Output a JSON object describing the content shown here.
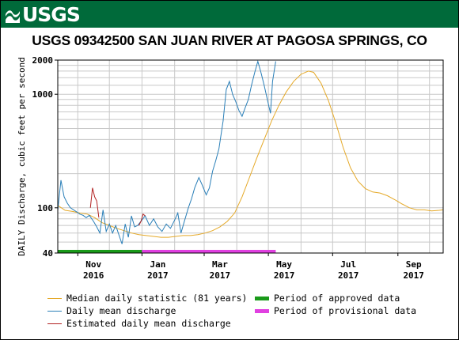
{
  "brand": {
    "logo_text": "USGS",
    "banner_color": "#006a3a"
  },
  "chart_data": {
    "type": "line",
    "title": "USGS 09342500 SAN JUAN RIVER AT PAGOSA SPRINGS, CO",
    "ylabel": "DAILY Discharge, cubic feet per second",
    "xlabel": "",
    "y_scale": "log",
    "ylim": [
      40,
      2000
    ],
    "y_ticks": [
      {
        "value": 40,
        "label": "40"
      },
      {
        "value": 100,
        "label": "100"
      },
      {
        "value": 1000,
        "label": "1000"
      },
      {
        "value": 2000,
        "label": "2000"
      }
    ],
    "xlim": [
      "2016-10-13",
      "2017-10-14"
    ],
    "x_ticks": [
      {
        "date": "2016-11-01",
        "month": "Nov",
        "year": "2016"
      },
      {
        "date": "2017-01-01",
        "month": "Jan",
        "year": "2017"
      },
      {
        "date": "2017-03-01",
        "month": "Mar",
        "year": "2017"
      },
      {
        "date": "2017-05-01",
        "month": "May",
        "year": "2017"
      },
      {
        "date": "2017-07-01",
        "month": "Jul",
        "year": "2017"
      },
      {
        "date": "2017-09-01",
        "month": "Sep",
        "year": "2017"
      }
    ],
    "grid": true,
    "series": [
      {
        "name": "Median daily statistic (81 years)",
        "color": "#e5a928",
        "points": [
          [
            "2016-10-13",
            105
          ],
          [
            "2016-10-20",
            95
          ],
          [
            "2016-10-27",
            93
          ],
          [
            "2016-11-03",
            90
          ],
          [
            "2016-11-10",
            88
          ],
          [
            "2016-11-17",
            82
          ],
          [
            "2016-11-24",
            74
          ],
          [
            "2016-12-01",
            70
          ],
          [
            "2016-12-08",
            66
          ],
          [
            "2016-12-15",
            63
          ],
          [
            "2016-12-22",
            60
          ],
          [
            "2016-12-29",
            58
          ],
          [
            "2017-01-05",
            57
          ],
          [
            "2017-01-12",
            56
          ],
          [
            "2017-01-19",
            55
          ],
          [
            "2017-01-26",
            55
          ],
          [
            "2017-02-02",
            56
          ],
          [
            "2017-02-09",
            57
          ],
          [
            "2017-02-16",
            57
          ],
          [
            "2017-02-23",
            58
          ],
          [
            "2017-03-02",
            60
          ],
          [
            "2017-03-09",
            63
          ],
          [
            "2017-03-16",
            68
          ],
          [
            "2017-03-23",
            76
          ],
          [
            "2017-03-30",
            90
          ],
          [
            "2017-04-06",
            125
          ],
          [
            "2017-04-13",
            185
          ],
          [
            "2017-04-20",
            275
          ],
          [
            "2017-04-27",
            400
          ],
          [
            "2017-05-04",
            580
          ],
          [
            "2017-05-11",
            800
          ],
          [
            "2017-05-18",
            1050
          ],
          [
            "2017-05-25",
            1300
          ],
          [
            "2017-06-01",
            1500
          ],
          [
            "2017-06-08",
            1600
          ],
          [
            "2017-06-13",
            1560
          ],
          [
            "2017-06-20",
            1250
          ],
          [
            "2017-06-27",
            880
          ],
          [
            "2017-07-04",
            560
          ],
          [
            "2017-07-11",
            340
          ],
          [
            "2017-07-18",
            225
          ],
          [
            "2017-07-25",
            172
          ],
          [
            "2017-08-01",
            148
          ],
          [
            "2017-08-08",
            138
          ],
          [
            "2017-08-15",
            135
          ],
          [
            "2017-08-22",
            128
          ],
          [
            "2017-08-29",
            118
          ],
          [
            "2017-09-05",
            108
          ],
          [
            "2017-09-12",
            100
          ],
          [
            "2017-09-19",
            96
          ],
          [
            "2017-09-26",
            96
          ],
          [
            "2017-10-03",
            94
          ],
          [
            "2017-10-10",
            95
          ],
          [
            "2017-10-14",
            96
          ]
        ]
      },
      {
        "name": "Daily mean discharge",
        "color": "#2a7fb8",
        "points": [
          [
            "2016-10-13",
            95
          ],
          [
            "2016-10-16",
            175
          ],
          [
            "2016-10-19",
            125
          ],
          [
            "2016-10-22",
            110
          ],
          [
            "2016-10-25",
            100
          ],
          [
            "2016-10-28",
            96
          ],
          [
            "2016-10-31",
            92
          ],
          [
            "2016-11-03",
            88
          ],
          [
            "2016-11-06",
            86
          ],
          [
            "2016-11-09",
            82
          ],
          [
            "2016-11-12",
            86
          ],
          [
            "2016-11-16",
            76
          ],
          [
            "2016-11-19",
            68
          ],
          [
            "2016-11-22",
            60
          ],
          [
            "2016-11-25",
            96
          ],
          [
            "2016-11-28",
            62
          ],
          [
            "2016-12-01",
            72
          ],
          [
            "2016-12-04",
            60
          ],
          [
            "2016-12-07",
            70
          ],
          [
            "2016-12-10",
            58
          ],
          [
            "2016-12-13",
            48
          ],
          [
            "2016-12-16",
            72
          ],
          [
            "2016-12-19",
            55
          ],
          [
            "2016-12-22",
            85
          ],
          [
            "2016-12-25",
            68
          ],
          [
            "2016-12-28",
            70
          ],
          [
            "2017-01-04",
            85
          ],
          [
            "2017-01-08",
            70
          ],
          [
            "2017-01-12",
            80
          ],
          [
            "2017-01-16",
            68
          ],
          [
            "2017-01-20",
            62
          ],
          [
            "2017-01-24",
            72
          ],
          [
            "2017-01-28",
            66
          ],
          [
            "2017-02-01",
            78
          ],
          [
            "2017-02-04",
            90
          ],
          [
            "2017-02-07",
            60
          ],
          [
            "2017-02-10",
            75
          ],
          [
            "2017-02-14",
            100
          ],
          [
            "2017-02-17",
            120
          ],
          [
            "2017-02-20",
            150
          ],
          [
            "2017-02-24",
            185
          ],
          [
            "2017-02-27",
            160
          ],
          [
            "2017-03-03",
            130
          ],
          [
            "2017-03-06",
            150
          ],
          [
            "2017-03-09",
            210
          ],
          [
            "2017-03-12",
            260
          ],
          [
            "2017-03-15",
            330
          ],
          [
            "2017-03-19",
            580
          ],
          [
            "2017-03-22",
            1100
          ],
          [
            "2017-03-25",
            1300
          ],
          [
            "2017-03-28",
            1000
          ],
          [
            "2017-03-31",
            860
          ],
          [
            "2017-04-03",
            720
          ],
          [
            "2017-04-06",
            640
          ],
          [
            "2017-04-09",
            760
          ],
          [
            "2017-04-12",
            900
          ],
          [
            "2017-04-15",
            1200
          ],
          [
            "2017-04-18",
            1550
          ],
          [
            "2017-04-21",
            1950
          ],
          [
            "2017-04-24",
            1550
          ],
          [
            "2017-04-27",
            1200
          ],
          [
            "2017-04-30",
            900
          ],
          [
            "2017-05-03",
            680
          ],
          [
            "2017-05-05",
            1300
          ],
          [
            "2017-05-08",
            1950
          ]
        ]
      },
      {
        "name": "Estimated daily mean discharge",
        "color": "#b22222",
        "points": [
          [
            "2016-11-13",
            100
          ],
          [
            "2016-11-15",
            150
          ],
          [
            "2016-11-17",
            125
          ],
          [
            "2016-11-19",
            115
          ],
          [
            "2016-11-21",
            82
          ],
          [
            "2016-12-29",
            70
          ],
          [
            "2016-12-31",
            76
          ],
          [
            "2017-01-02",
            88
          ],
          [
            "2017-01-04",
            85
          ]
        ]
      }
    ],
    "periods": [
      {
        "name": "Period of approved data",
        "color": "#1a9a1a",
        "start": "2016-10-13",
        "end": "2017-01-01"
      },
      {
        "name": "Period of provisional data",
        "color": "#e040e0",
        "start": "2017-01-01",
        "end": "2017-05-08"
      }
    ]
  }
}
